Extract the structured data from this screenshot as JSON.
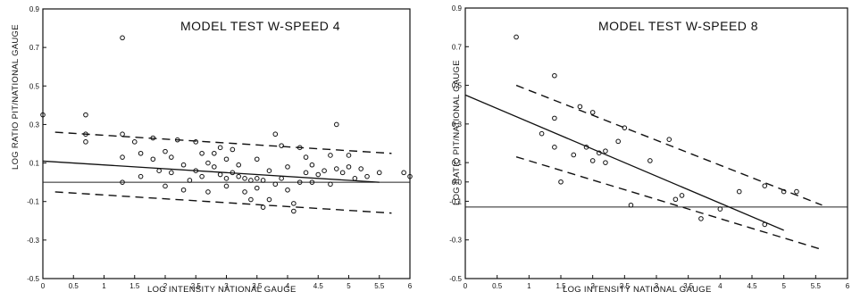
{
  "chart_data": [
    {
      "type": "scatter",
      "title": "MODEL TEST W-SPEED 4",
      "xlabel": "LOG INTENSITY NATIONAL GAUGE",
      "ylabel": "LOG RATIO PIT/NATIONAL GAUGE",
      "xlim": [
        0,
        6
      ],
      "ylim": [
        -0.5,
        0.9
      ],
      "xticks": [
        "0",
        "0.5",
        "1",
        "1.5",
        "2",
        "2.5",
        "3",
        "3.5",
        "4",
        "4.5",
        "5",
        "5.5",
        "6"
      ],
      "yticks": [
        "0.9",
        "0.7",
        "0.5",
        "0.3",
        "0.1",
        "-0.1",
        "-0.3",
        "-0.5"
      ],
      "ref_line_y": 0.0,
      "regression": [
        [
          0,
          0.11
        ],
        [
          5.5,
          0.0
        ]
      ],
      "band_upper": [
        [
          0.2,
          0.26
        ],
        [
          5.7,
          0.15
        ]
      ],
      "band_lower": [
        [
          0.2,
          -0.05
        ],
        [
          5.7,
          -0.16
        ]
      ],
      "points": [
        [
          0,
          0.35
        ],
        [
          0.7,
          0.35
        ],
        [
          0.7,
          0.25
        ],
        [
          0.7,
          0.21
        ],
        [
          1.3,
          0.75
        ],
        [
          1.3,
          0.25
        ],
        [
          1.3,
          0.13
        ],
        [
          1.3,
          0.0
        ],
        [
          1.5,
          0.21
        ],
        [
          1.6,
          0.15
        ],
        [
          1.6,
          0.03
        ],
        [
          1.8,
          0.23
        ],
        [
          1.8,
          0.12
        ],
        [
          1.9,
          0.06
        ],
        [
          2.0,
          0.16
        ],
        [
          2.0,
          -0.02
        ],
        [
          2.1,
          0.13
        ],
        [
          2.1,
          0.05
        ],
        [
          2.2,
          0.22
        ],
        [
          2.3,
          0.09
        ],
        [
          2.3,
          -0.04
        ],
        [
          2.4,
          0.01
        ],
        [
          2.5,
          0.21
        ],
        [
          2.5,
          0.06
        ],
        [
          2.6,
          0.15
        ],
        [
          2.6,
          0.03
        ],
        [
          2.7,
          -0.05
        ],
        [
          2.7,
          0.1
        ],
        [
          2.8,
          0.08
        ],
        [
          2.8,
          0.15
        ],
        [
          2.9,
          0.18
        ],
        [
          2.9,
          0.04
        ],
        [
          3.0,
          0.12
        ],
        [
          3.0,
          0.02
        ],
        [
          3.0,
          -0.02
        ],
        [
          3.1,
          0.05
        ],
        [
          3.1,
          0.17
        ],
        [
          3.2,
          0.09
        ],
        [
          3.2,
          0.03
        ],
        [
          3.3,
          -0.05
        ],
        [
          3.3,
          0.02
        ],
        [
          3.4,
          -0.09
        ],
        [
          3.4,
          0.01
        ],
        [
          3.5,
          0.02
        ],
        [
          3.5,
          -0.03
        ],
        [
          3.5,
          0.12
        ],
        [
          3.6,
          0.01
        ],
        [
          3.6,
          -0.13
        ],
        [
          3.7,
          -0.09
        ],
        [
          3.7,
          0.06
        ],
        [
          3.8,
          0.25
        ],
        [
          3.8,
          -0.01
        ],
        [
          3.9,
          0.19
        ],
        [
          3.9,
          0.02
        ],
        [
          4.0,
          -0.04
        ],
        [
          4.0,
          0.08
        ],
        [
          4.1,
          -0.15
        ],
        [
          4.1,
          -0.11
        ],
        [
          4.2,
          0.18
        ],
        [
          4.2,
          0.0
        ],
        [
          4.3,
          0.13
        ],
        [
          4.3,
          0.05
        ],
        [
          4.4,
          0.0
        ],
        [
          4.4,
          0.09
        ],
        [
          4.5,
          0.04
        ],
        [
          4.6,
          0.06
        ],
        [
          4.7,
          0.14
        ],
        [
          4.7,
          -0.01
        ],
        [
          4.8,
          0.07
        ],
        [
          4.8,
          0.3
        ],
        [
          4.9,
          0.05
        ],
        [
          5.0,
          0.08
        ],
        [
          5.0,
          0.14
        ],
        [
          5.1,
          0.02
        ],
        [
          5.2,
          0.07
        ],
        [
          5.3,
          0.03
        ],
        [
          5.5,
          0.05
        ],
        [
          5.9,
          0.05
        ],
        [
          6.0,
          0.03
        ]
      ]
    },
    {
      "type": "scatter",
      "title": "MODEL TEST W-SPEED 8",
      "xlabel": "LOG INTENSITY NATIONAL GAUGE",
      "ylabel": "LOG RATIO PIT/NATIONAL GAUGE",
      "xlim": [
        0,
        6
      ],
      "ylim": [
        -0.5,
        0.9
      ],
      "xticks": [
        "0",
        "0.5",
        "1",
        "1.5",
        "2",
        "2.5",
        "3",
        "3.5",
        "4",
        "4.5",
        "5",
        "5.5",
        "6"
      ],
      "yticks": [
        "0.9",
        "0.7",
        "0.5",
        "0.3",
        "0.1",
        "0.0",
        "-0.1",
        "-0.3",
        "-0.5"
      ],
      "ref_line_y": -0.13,
      "regression": [
        [
          0,
          0.45
        ],
        [
          5.0,
          -0.25
        ]
      ],
      "band_upper": [
        [
          0.8,
          0.5
        ],
        [
          5.6,
          -0.12
        ]
      ],
      "band_lower": [
        [
          0.8,
          0.13
        ],
        [
          5.6,
          -0.35
        ]
      ],
      "points": [
        [
          0.8,
          0.75
        ],
        [
          1.2,
          0.25
        ],
        [
          1.4,
          0.55
        ],
        [
          1.4,
          0.33
        ],
        [
          1.4,
          0.18
        ],
        [
          1.5,
          0.0
        ],
        [
          1.7,
          0.14
        ],
        [
          1.8,
          0.39
        ],
        [
          1.9,
          0.18
        ],
        [
          2.0,
          0.36
        ],
        [
          2.0,
          0.11
        ],
        [
          2.1,
          0.15
        ],
        [
          2.2,
          0.16
        ],
        [
          2.2,
          0.1
        ],
        [
          2.4,
          0.21
        ],
        [
          2.5,
          0.28
        ],
        [
          2.6,
          -0.12
        ],
        [
          2.9,
          0.11
        ],
        [
          3.2,
          0.22
        ],
        [
          3.3,
          -0.09
        ],
        [
          3.4,
          -0.07
        ],
        [
          3.7,
          -0.19
        ],
        [
          4.0,
          -0.14
        ],
        [
          4.3,
          -0.05
        ],
        [
          4.7,
          -0.02
        ],
        [
          4.7,
          -0.22
        ],
        [
          5.0,
          -0.05
        ],
        [
          5.2,
          -0.05
        ]
      ]
    }
  ]
}
